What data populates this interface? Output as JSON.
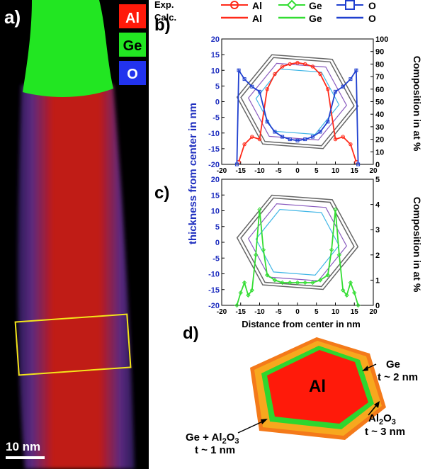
{
  "panels": {
    "a": {
      "label": "a)",
      "legend": [
        "Al",
        "Ge",
        "O"
      ],
      "scalebar": "10 nm"
    },
    "b": {
      "label": "b)"
    },
    "c": {
      "label": "c)"
    },
    "d": {
      "label": "d)",
      "core": "Al",
      "ge_shell": {
        "name": "Ge",
        "thickness": "t ~ 2 nm"
      },
      "al2o3_shell": {
        "name": "Al2O3",
        "thickness": "t ~ 3 nm"
      },
      "mixed_shell": {
        "name": "Ge + Al2O3",
        "thickness": "t ~ 1 nm"
      }
    }
  },
  "legend": {
    "exp_label": "Exp.",
    "calc_label": "Calc.",
    "series": [
      "Al",
      "Ge",
      "O"
    ],
    "colors": {
      "Al": "#ff2a1a",
      "Ge": "#33dd33",
      "O": "#1f3fcf"
    }
  },
  "axes": {
    "left_ylabel": "thickness from center in nm",
    "right_ylabel": "Composition in at %",
    "xlabel": "Distance from center in nm"
  },
  "chart_data": [
    {
      "type": "line",
      "panel": "b",
      "x_ticks": [
        -20,
        -15,
        -10,
        -5,
        0,
        5,
        10,
        15,
        20
      ],
      "left_ylim": [
        -20,
        20
      ],
      "left_ticks": [
        -20,
        -15,
        -10,
        -5,
        0,
        5,
        10,
        15,
        20
      ],
      "right_ylim": [
        0,
        100
      ],
      "right_ticks": [
        0,
        10,
        20,
        30,
        40,
        50,
        60,
        70,
        80,
        90,
        100
      ],
      "series": [
        {
          "name": "Al",
          "role": "Exp.",
          "color": "#ff2a1a",
          "x": [
            -15.5,
            -14,
            -12,
            -10,
            -8,
            -6,
            -4,
            -2,
            0,
            2,
            4,
            6,
            8,
            10,
            12,
            14,
            15.5
          ],
          "y": [
            2,
            16,
            22,
            20,
            60,
            72,
            78,
            80,
            81,
            80,
            78,
            72,
            60,
            20,
            22,
            16,
            2
          ]
        },
        {
          "name": "O",
          "role": "Exp.",
          "color": "#1f3fcf",
          "x": [
            -16,
            -15.5,
            -14,
            -12,
            -10,
            -8,
            -6,
            -4,
            -2,
            0,
            2,
            4,
            6,
            8,
            10,
            12,
            14,
            15.5,
            16
          ],
          "y": [
            0,
            75,
            68,
            62,
            58,
            34,
            26,
            22,
            20,
            19,
            20,
            22,
            26,
            34,
            58,
            62,
            68,
            75,
            0
          ]
        }
      ]
    },
    {
      "type": "line",
      "panel": "c",
      "x_ticks": [
        -20,
        -15,
        -10,
        -5,
        0,
        5,
        10,
        15,
        20
      ],
      "left_ylim": [
        -20,
        20
      ],
      "left_ticks": [
        -20,
        -15,
        -10,
        -5,
        0,
        5,
        10,
        15,
        20
      ],
      "right_ylim": [
        0,
        5
      ],
      "right_ticks": [
        0,
        1,
        2,
        3,
        4,
        5
      ],
      "series": [
        {
          "name": "Ge",
          "role": "Exp.",
          "color": "#33dd33",
          "x": [
            -16,
            -15,
            -14,
            -13,
            -12,
            -11,
            -10,
            -9,
            -8,
            -6,
            -4,
            -2,
            0,
            2,
            4,
            6,
            8,
            9,
            10,
            11,
            12,
            13,
            14,
            15,
            16
          ],
          "y": [
            0,
            0.5,
            0.9,
            0.4,
            0.6,
            2.0,
            3.8,
            2.2,
            1.2,
            1.0,
            0.9,
            0.9,
            0.9,
            0.9,
            0.9,
            1.0,
            1.2,
            2.2,
            3.8,
            2.0,
            0.6,
            0.4,
            0.9,
            0.5,
            0
          ]
        }
      ]
    }
  ]
}
